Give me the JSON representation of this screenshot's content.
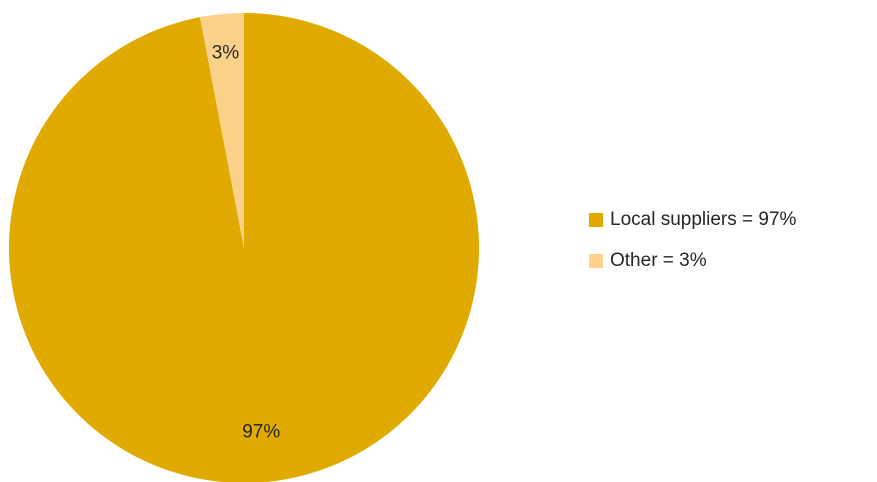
{
  "chart_data": {
    "type": "pie",
    "title": "",
    "slices": [
      {
        "label": "Local suppliers = 97%",
        "value": 97,
        "data_label": "97%",
        "color": "#E0AA00"
      },
      {
        "label": "Other = 3%",
        "value": 3,
        "data_label": "3%",
        "color": "#FCD28A"
      }
    ],
    "legend_position": "right",
    "start_angle": "12 o'clock",
    "direction": "clockwise"
  }
}
